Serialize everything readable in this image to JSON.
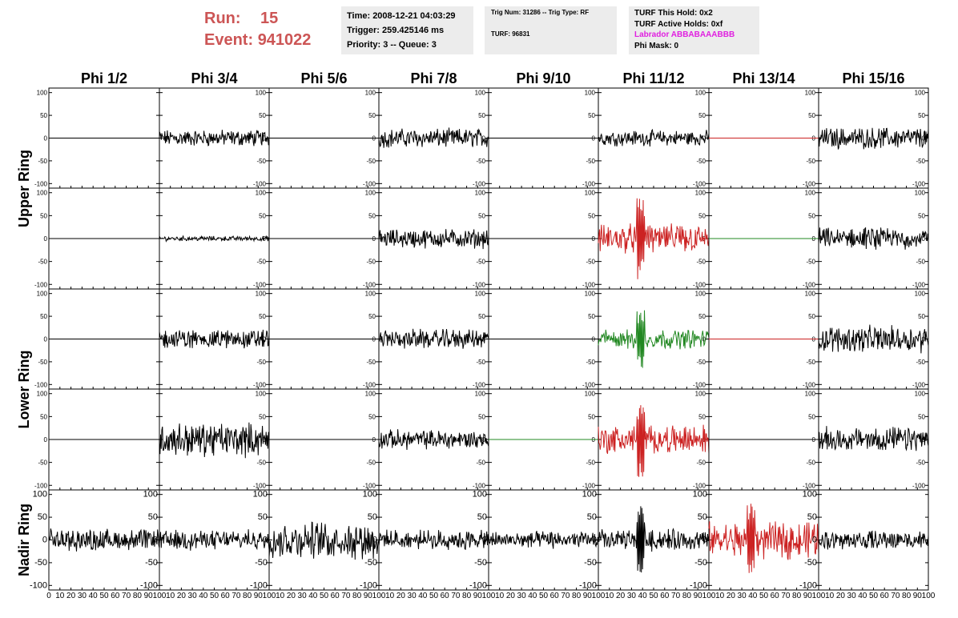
{
  "header": {
    "run_label": "Run:",
    "run_value": "15",
    "event_label": "Event:",
    "event_value": "941022",
    "accent_color": "#cc5555"
  },
  "info_box_1": {
    "time": "Time: 2008-12-21 04:03:29",
    "trigger": "Trigger: 259.425146 ms",
    "priority": "Priority: 3 -- Queue: 3"
  },
  "info_box_2": {
    "trig": "Trig Num: 31286 -- Trig Type: RF",
    "turf": "TURF: 96831"
  },
  "info_box_3": {
    "this_hold": "TURF This Hold: 0x2",
    "active_holds": "TURF Active Holds: 0xf",
    "labrador": "Labrador ABBABAAABBB",
    "labrador_color": "#e020e0",
    "phi_mask": "Phi Mask: 0"
  },
  "chart_data": {
    "type": "line",
    "columns": [
      "Phi 1/2",
      "Phi 3/4",
      "Phi 5/6",
      "Phi 7/8",
      "Phi 9/10",
      "Phi 11/12",
      "Phi 13/14",
      "Phi 15/16"
    ],
    "ring_labels": [
      {
        "label": "Upper Ring",
        "rows": [
          0,
          1
        ]
      },
      {
        "label": "Lower Ring",
        "rows": [
          2,
          3
        ]
      },
      {
        "label": "Nadir Ring",
        "rows": [
          4
        ]
      }
    ],
    "xlim": [
      0,
      100
    ],
    "ylim": [
      -110,
      110
    ],
    "x_ticks": [
      "0",
      "10",
      "20",
      "30",
      "40",
      "50",
      "60",
      "70",
      "80",
      "90",
      "100"
    ],
    "y_ticks": [
      "100",
      "50",
      "0",
      "-50",
      "-100"
    ],
    "panels": [
      [
        {
          "color": "#000000",
          "amp": 0
        },
        {
          "color": "#000000",
          "amp": 14
        },
        {
          "color": "#000000",
          "amp": 0
        },
        {
          "color": "#000000",
          "amp": 16
        },
        {
          "color": "#000000",
          "amp": 0
        },
        {
          "color": "#000000",
          "amp": 13
        },
        {
          "color": "#cc2222",
          "amp": 0
        },
        {
          "color": "#000000",
          "amp": 18
        }
      ],
      [
        {
          "color": "#000000",
          "amp": 0
        },
        {
          "color": "#000000",
          "amp": 4
        },
        {
          "color": "#000000",
          "amp": 0
        },
        {
          "color": "#000000",
          "amp": 16
        },
        {
          "color": "#000000",
          "amp": 0
        },
        {
          "color": "#cc2222",
          "amp": 24,
          "spike": 90
        },
        {
          "color": "#228822",
          "amp": 0
        },
        {
          "color": "#000000",
          "amp": 18
        }
      ],
      [
        {
          "color": "#000000",
          "amp": 0
        },
        {
          "color": "#000000",
          "amp": 16
        },
        {
          "color": "#000000",
          "amp": 0
        },
        {
          "color": "#000000",
          "amp": 16
        },
        {
          "color": "#000000",
          "amp": 0
        },
        {
          "color": "#228822",
          "amp": 16,
          "spike": 70
        },
        {
          "color": "#cc2222",
          "amp": 0
        },
        {
          "color": "#000000",
          "amp": 22
        }
      ],
      [
        {
          "color": "#000000",
          "amp": 0
        },
        {
          "color": "#000000",
          "amp": 28
        },
        {
          "color": "#000000",
          "amp": 0
        },
        {
          "color": "#000000",
          "amp": 16
        },
        {
          "color": "#228822",
          "amp": 0
        },
        {
          "color": "#cc2222",
          "amp": 24,
          "spike": 85
        },
        {
          "color": "#000000",
          "amp": 0
        },
        {
          "color": "#000000",
          "amp": 20
        }
      ],
      [
        {
          "color": "#000000",
          "amp": 18
        },
        {
          "color": "#000000",
          "amp": 16
        },
        {
          "color": "#000000",
          "amp": 30
        },
        {
          "color": "#000000",
          "amp": 16
        },
        {
          "color": "#000000",
          "amp": 14
        },
        {
          "color": "#000000",
          "amp": 18,
          "spike": 75
        },
        {
          "color": "#cc2222",
          "amp": 30,
          "spike": 80
        },
        {
          "color": "#000000",
          "amp": 16
        }
      ]
    ]
  }
}
